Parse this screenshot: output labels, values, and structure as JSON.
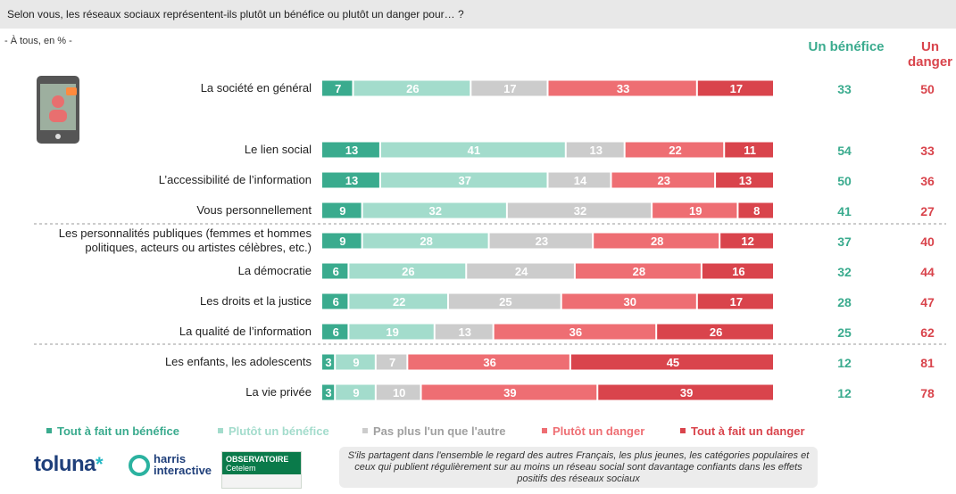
{
  "header": {
    "question": "Selon vous, les réseaux sociaux représentent-ils plutôt un bénéfice ou plutôt un danger pour… ?",
    "base": "- À tous, en % -"
  },
  "columns": {
    "benefit": "Un bénéfice",
    "danger": "Un danger"
  },
  "colors": {
    "tout_benefice": "#3aab8e",
    "plutot_benefice": "#a3dccc",
    "neutre": "#cccccc",
    "plutot_danger": "#ee6e73",
    "tout_danger": "#d9444c"
  },
  "chart_data": {
    "type": "bar",
    "orientation": "horizontal",
    "stacked": true,
    "categories": [
      "La société en général",
      "Le lien social",
      "L’accessibilité de l’information",
      "Vous personnellement",
      "Les personnalités publiques (femmes et hommes politiques, acteurs ou artistes célèbres, etc.)",
      "La démocratie",
      "Les droits et la justice",
      "La qualité de l’information",
      "Les enfants, les adolescents",
      "La vie privée"
    ],
    "series": [
      {
        "name": "Tout à fait un bénéfice",
        "values": [
          7,
          13,
          13,
          9,
          9,
          6,
          6,
          6,
          3,
          3
        ]
      },
      {
        "name": "Plutôt un bénéfice",
        "values": [
          26,
          41,
          37,
          32,
          28,
          26,
          22,
          19,
          9,
          9
        ]
      },
      {
        "name": "Pas plus l’un que l’autre",
        "values": [
          17,
          13,
          14,
          32,
          23,
          24,
          25,
          13,
          7,
          10
        ]
      },
      {
        "name": "Plutôt un danger",
        "values": [
          33,
          22,
          23,
          19,
          28,
          28,
          30,
          36,
          36,
          39
        ]
      },
      {
        "name": "Tout à fait un danger",
        "values": [
          17,
          11,
          13,
          8,
          12,
          16,
          17,
          26,
          45,
          39
        ]
      }
    ],
    "totals": {
      "benefit": [
        33,
        54,
        50,
        41,
        37,
        32,
        28,
        25,
        12,
        12
      ],
      "danger": [
        50,
        33,
        36,
        27,
        40,
        44,
        47,
        62,
        81,
        78
      ]
    },
    "legend_position": "bottom"
  },
  "legend": [
    "Tout à fait un bénéfice",
    "Plutôt un bénéfice",
    "Pas plus l'un que l'autre",
    "Plutôt un danger",
    "Tout à fait un danger"
  ],
  "note": "S'ils partagent dans l'ensemble le regard des autres Français, les plus jeunes, les catégories populaires et ceux qui publient régulièrement sur au moins un réseau social sont davantage confiants dans les effets positifs des réseaux sociaux",
  "logos": {
    "toluna": "toluna",
    "harris_line1": "harris",
    "harris_line2": "interactive",
    "observatoire_line1": "OBSERVATOIRE",
    "observatoire_line2": "Cetelem"
  },
  "icons": {
    "phone": "smartphone-icon"
  }
}
